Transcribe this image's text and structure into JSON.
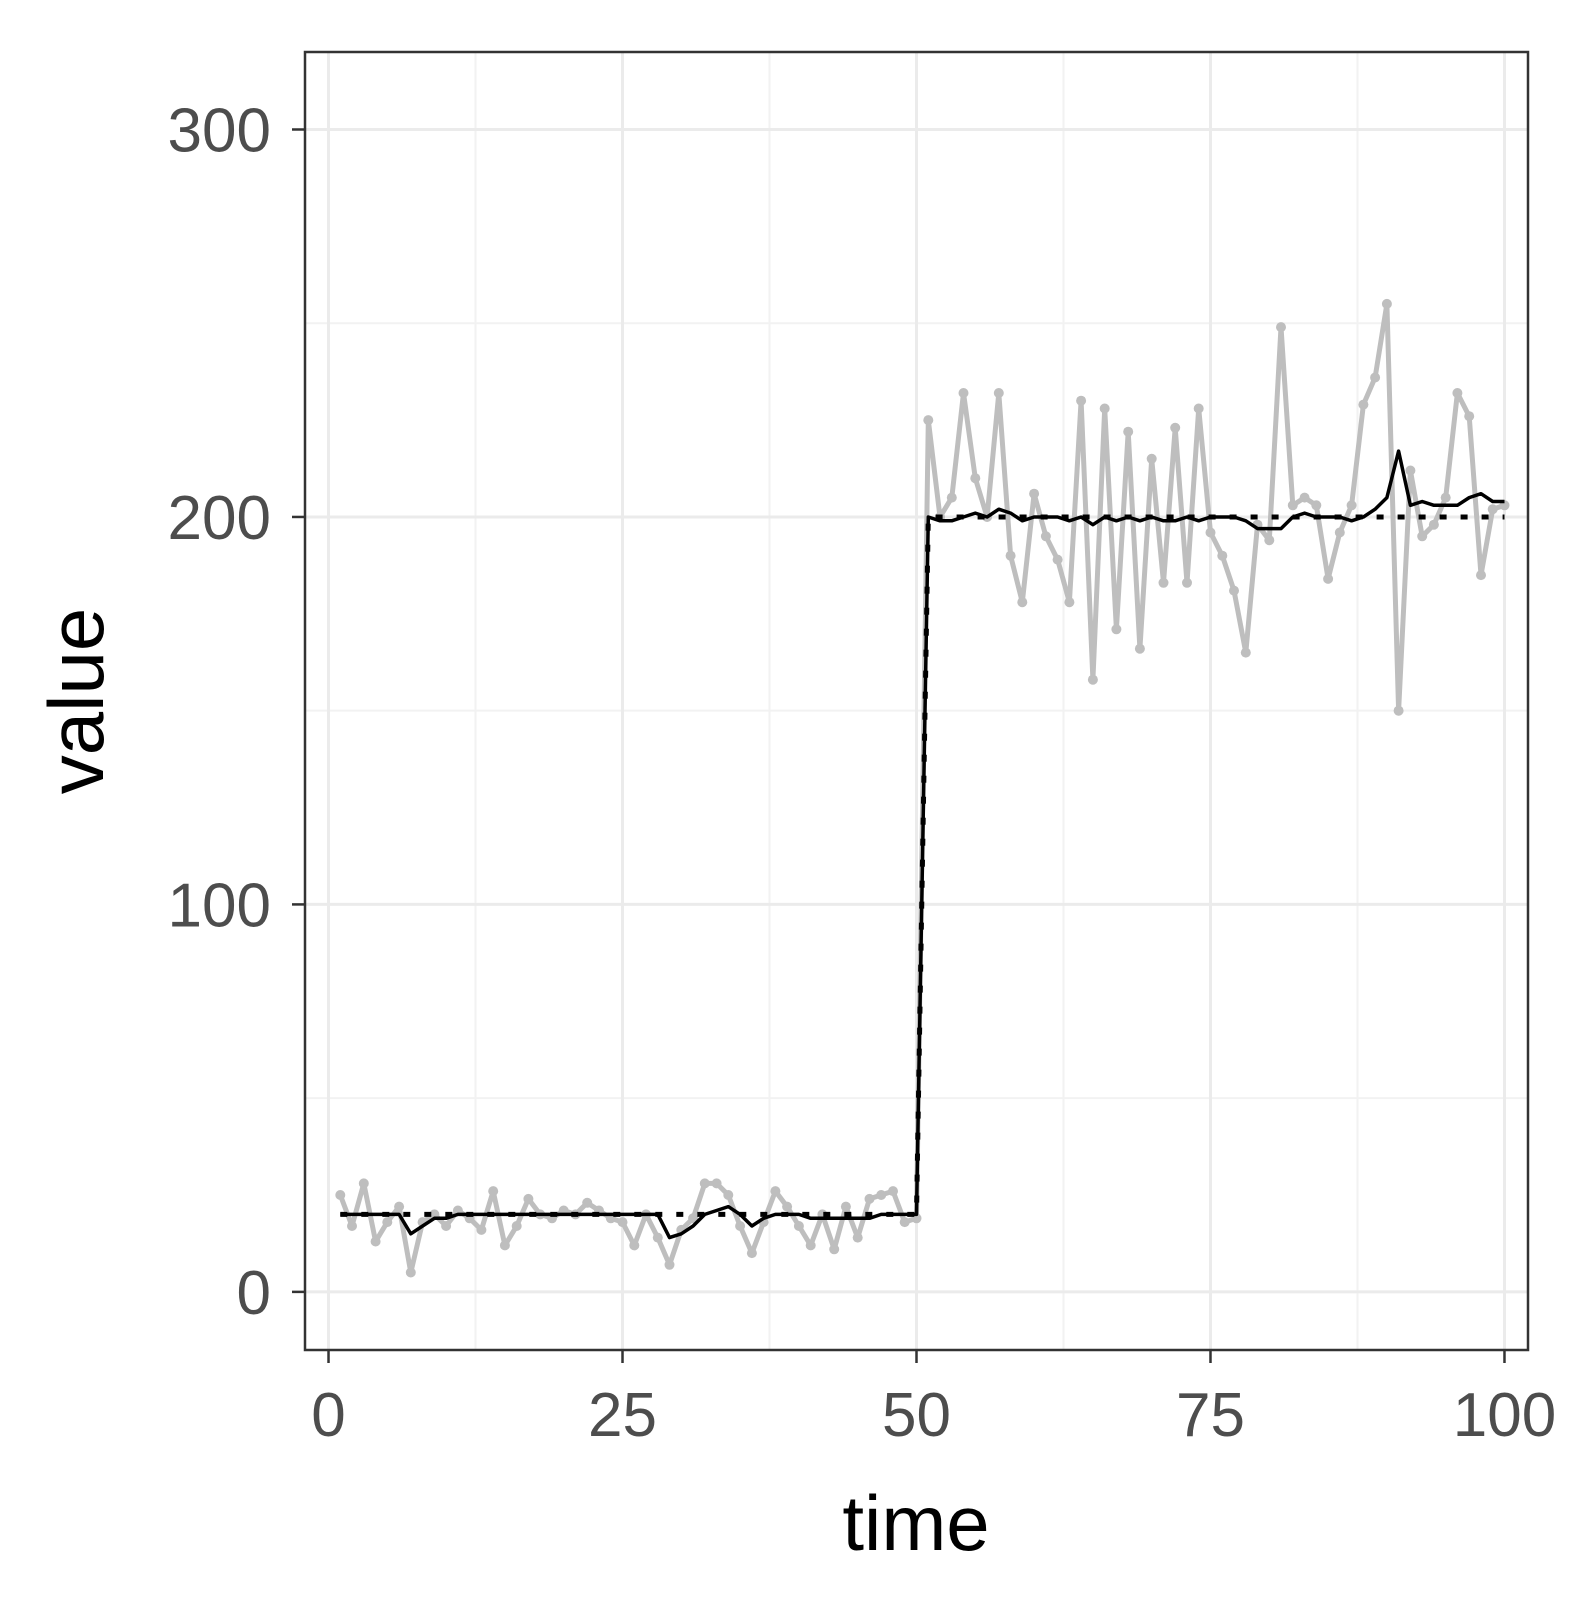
{
  "chart_data": {
    "type": "line",
    "title": "",
    "xlabel": "time",
    "ylabel": "value",
    "xlim": [
      -2,
      102
    ],
    "ylim": [
      -15,
      320
    ],
    "x_ticks": [
      0,
      25,
      50,
      75,
      100
    ],
    "x_tick_labels": [
      "0",
      "25",
      "50",
      "75",
      "100"
    ],
    "y_ticks": [
      0,
      100,
      200,
      300
    ],
    "y_tick_labels": [
      "0",
      "100",
      "200",
      "300"
    ],
    "grid": true,
    "legend": "none",
    "series": [
      {
        "color": "#bebebe",
        "style": "solid-with-points",
        "x": [
          1,
          2,
          3,
          4,
          5,
          6,
          7,
          8,
          9,
          10,
          11,
          12,
          13,
          14,
          15,
          16,
          17,
          18,
          19,
          20,
          21,
          22,
          23,
          24,
          25,
          26,
          27,
          28,
          29,
          30,
          31,
          32,
          33,
          34,
          35,
          36,
          37,
          38,
          39,
          40,
          41,
          42,
          43,
          44,
          45,
          46,
          47,
          48,
          49,
          50,
          51,
          52,
          53,
          54,
          55,
          56,
          57,
          58,
          59,
          60,
          61,
          62,
          63,
          64,
          65,
          66,
          67,
          68,
          69,
          70,
          71,
          72,
          73,
          74,
          75,
          76,
          77,
          78,
          79,
          80,
          81,
          82,
          83,
          84,
          85,
          86,
          87,
          88,
          89,
          90,
          91,
          92,
          93,
          94,
          95,
          96,
          97,
          98,
          99,
          100
        ],
        "y": [
          25,
          17,
          28,
          13,
          18,
          22,
          5,
          18,
          20,
          17,
          21,
          19,
          16,
          26,
          12,
          17,
          24,
          20,
          19,
          21,
          20,
          23,
          21,
          19,
          18,
          12,
          20,
          14,
          7,
          16,
          19,
          28,
          28,
          25,
          17,
          10,
          18,
          26,
          22,
          17,
          12,
          20,
          11,
          22,
          14,
          24,
          25,
          26,
          18,
          19,
          225,
          200,
          205,
          232,
          210,
          200,
          232,
          190,
          178,
          206,
          195,
          189,
          178,
          230,
          158,
          228,
          171,
          222,
          166,
          215,
          183,
          223,
          183,
          228,
          196,
          190,
          181,
          165,
          198,
          194,
          249,
          203,
          205,
          203,
          184,
          196,
          203,
          229,
          236,
          255,
          150,
          212,
          195,
          198,
          205,
          232,
          226,
          185,
          202,
          203
        ]
      },
      {
        "color": "#000000",
        "style": "solid",
        "x": [
          1,
          2,
          3,
          4,
          5,
          6,
          7,
          8,
          9,
          10,
          11,
          12,
          13,
          14,
          15,
          16,
          17,
          18,
          19,
          20,
          21,
          22,
          23,
          24,
          25,
          26,
          27,
          28,
          29,
          30,
          31,
          32,
          33,
          34,
          35,
          36,
          37,
          38,
          39,
          40,
          41,
          42,
          43,
          44,
          45,
          46,
          47,
          48,
          49,
          50,
          51,
          52,
          53,
          54,
          55,
          56,
          57,
          58,
          59,
          60,
          61,
          62,
          63,
          64,
          65,
          66,
          67,
          68,
          69,
          70,
          71,
          72,
          73,
          74,
          75,
          76,
          77,
          78,
          79,
          80,
          81,
          82,
          83,
          84,
          85,
          86,
          87,
          88,
          89,
          90,
          91,
          92,
          93,
          94,
          95,
          96,
          97,
          98,
          99,
          100
        ],
        "y": [
          20,
          20,
          20,
          20,
          20,
          20,
          15,
          17,
          19,
          19,
          20,
          20,
          20,
          20,
          20,
          20,
          20,
          20,
          20,
          20,
          20,
          20,
          20,
          20,
          20,
          20,
          20,
          20,
          14,
          15,
          17,
          20,
          21,
          22,
          20,
          17,
          19,
          20,
          20,
          20,
          19,
          19,
          19,
          19,
          19,
          19,
          20,
          20,
          20,
          20,
          200,
          199,
          199,
          200,
          201,
          200,
          202,
          201,
          199,
          200,
          200,
          200,
          199,
          200,
          198,
          200,
          199,
          200,
          199,
          200,
          199,
          199,
          200,
          199,
          200,
          200,
          200,
          199,
          197,
          197,
          197,
          200,
          201,
          200,
          200,
          200,
          199,
          200,
          202,
          205,
          217,
          203,
          204,
          203,
          203,
          203,
          205,
          206,
          204,
          204
        ]
      },
      {
        "color": "#000000",
        "style": "dotted",
        "x": [
          1,
          50,
          51,
          100
        ],
        "y": [
          20,
          20,
          200,
          200
        ]
      }
    ]
  }
}
